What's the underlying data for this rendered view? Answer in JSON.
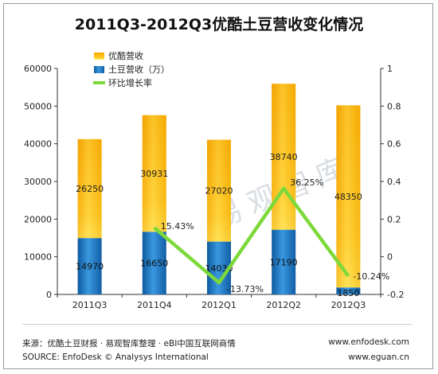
{
  "chart_data": {
    "type": "bar",
    "title": "2011Q3-2012Q3优酷土豆营收变化情况",
    "categories": [
      "2011Q3",
      "2011Q4",
      "2012Q1",
      "2012Q2",
      "2012Q3"
    ],
    "series": [
      {
        "name": "优酷营收",
        "values": [
          26250,
          30931,
          27020,
          38740,
          48350
        ],
        "color": "#f7b400",
        "stacked": true
      },
      {
        "name": "土豆营收（万）",
        "values": [
          14970,
          16650,
          14030,
          17190,
          1850
        ],
        "color": "#1a73bf",
        "stacked": true
      },
      {
        "name": "环比增长率",
        "type": "line",
        "axis": "right",
        "values": [
          null,
          0.1543,
          -0.1373,
          0.3625,
          -0.1024
        ],
        "labels": [
          "",
          "15.43%",
          "-13.73%",
          "36.25%",
          "-10.24%"
        ],
        "color": "#7dd93a"
      }
    ],
    "left_axis": {
      "ylim": [
        0,
        60000
      ],
      "ticks": [
        "0",
        "10000",
        "20000",
        "30000",
        "40000",
        "50000",
        "60000"
      ]
    },
    "right_axis": {
      "ylim": [
        -0.2,
        1
      ],
      "ticks": [
        "-0.2",
        "0",
        "0.2",
        "0.4",
        "0.6",
        "0.8",
        "1"
      ]
    },
    "legend": "top-left",
    "grid": false
  },
  "footer": {
    "source_cn": "来源：优酷土豆财报 · 易观智库整理 · eBI中国互联网商情",
    "source_en": "SOURCE: EnfoDesk © Analysys International",
    "url1": "www.enfodesk.com",
    "url2": "www.eguan.cn"
  },
  "watermark": "易观智库"
}
